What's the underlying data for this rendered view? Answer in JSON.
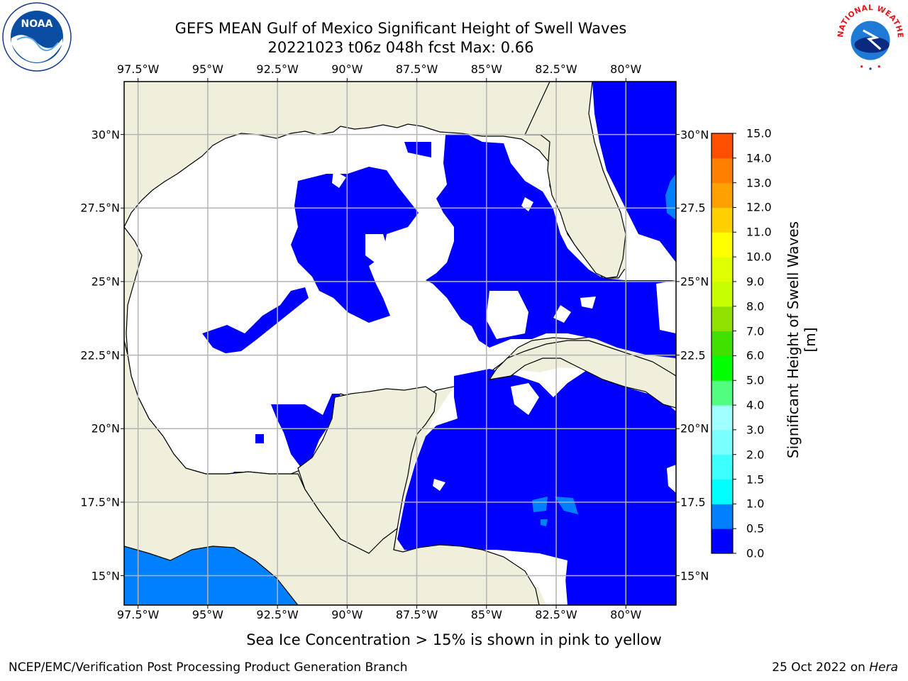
{
  "title_line1": "GEFS MEAN Gulf of Mexico Significant Height of Swell Waves",
  "title_line2": "20221023 t06z 048h fcst   Max: 0.66",
  "lon_ticks": [
    {
      "value": -97.5,
      "label": "97.5°W"
    },
    {
      "value": -95,
      "label": "95°W"
    },
    {
      "value": -92.5,
      "label": "92.5°W"
    },
    {
      "value": -90,
      "label": "90°W"
    },
    {
      "value": -87.5,
      "label": "87.5°W"
    },
    {
      "value": -85,
      "label": "85°W"
    },
    {
      "value": -82.5,
      "label": "82.5°W"
    },
    {
      "value": -80,
      "label": "80°W"
    }
  ],
  "lat_ticks": [
    {
      "value": 30,
      "label": "30°N"
    },
    {
      "value": 27.5,
      "label": "27.5°N"
    },
    {
      "value": 25,
      "label": "25°N"
    },
    {
      "value": 22.5,
      "label": "22.5°N"
    },
    {
      "value": 20,
      "label": "20°N"
    },
    {
      "value": 17.5,
      "label": "17.5°N"
    },
    {
      "value": 15,
      "label": "15°N"
    }
  ],
  "lat_ticks_right": [
    {
      "value": 30,
      "label": "30°N"
    },
    {
      "value": 27.5,
      "label": "27.5"
    },
    {
      "value": 25,
      "label": "25°N"
    },
    {
      "value": 22.5,
      "label": "22.5"
    },
    {
      "value": 20,
      "label": "20°N"
    },
    {
      "value": 17.5,
      "label": "17.5"
    },
    {
      "value": 15,
      "label": "15°N"
    }
  ],
  "map_extent": {
    "lon_min": -98,
    "lon_max": -78.2,
    "lat_min": 14,
    "lat_max": 31.8
  },
  "colorbar": {
    "title": "Significant Height of Swell Waves [m]",
    "min": 0,
    "max": 15,
    "tick_labels": [
      "0.0",
      "0.5",
      "1.0",
      "1.5",
      "2.0",
      "3.0",
      "4.0",
      "5.0",
      "6.0",
      "7.0",
      "8.0",
      "9.0",
      "10.0",
      "11.0",
      "12.0",
      "13.0",
      "14.0",
      "15.0"
    ],
    "colors": [
      "#0000ff",
      "#0080ff",
      "#00ffff",
      "#3cffff",
      "#78ffff",
      "#a0ffff",
      "#50ff80",
      "#00ff00",
      "#40e000",
      "#90e000",
      "#c8ff00",
      "#e0ff00",
      "#ffff00",
      "#ffd000",
      "#ffa000",
      "#ff8000",
      "#ff5000",
      "#ff2000",
      "#ff0000"
    ]
  },
  "colors": {
    "land": "#efefdc",
    "ocean_zero": "#ffffff",
    "swell_low": "#0000ff",
    "swell_mid": "#0080ff",
    "grid": "#b4b4b4"
  },
  "seaice_note": "Sea Ice Concentration > 15% is shown in pink to yellow",
  "footer_left": "NCEP/EMC/Verification Post Processing Product Generation Branch",
  "footer_date": "25 Oct 2022 on ",
  "footer_host": "Hera",
  "logos": {
    "left": "NOAA",
    "right": "NATIONAL WEATHER SERVICE"
  }
}
